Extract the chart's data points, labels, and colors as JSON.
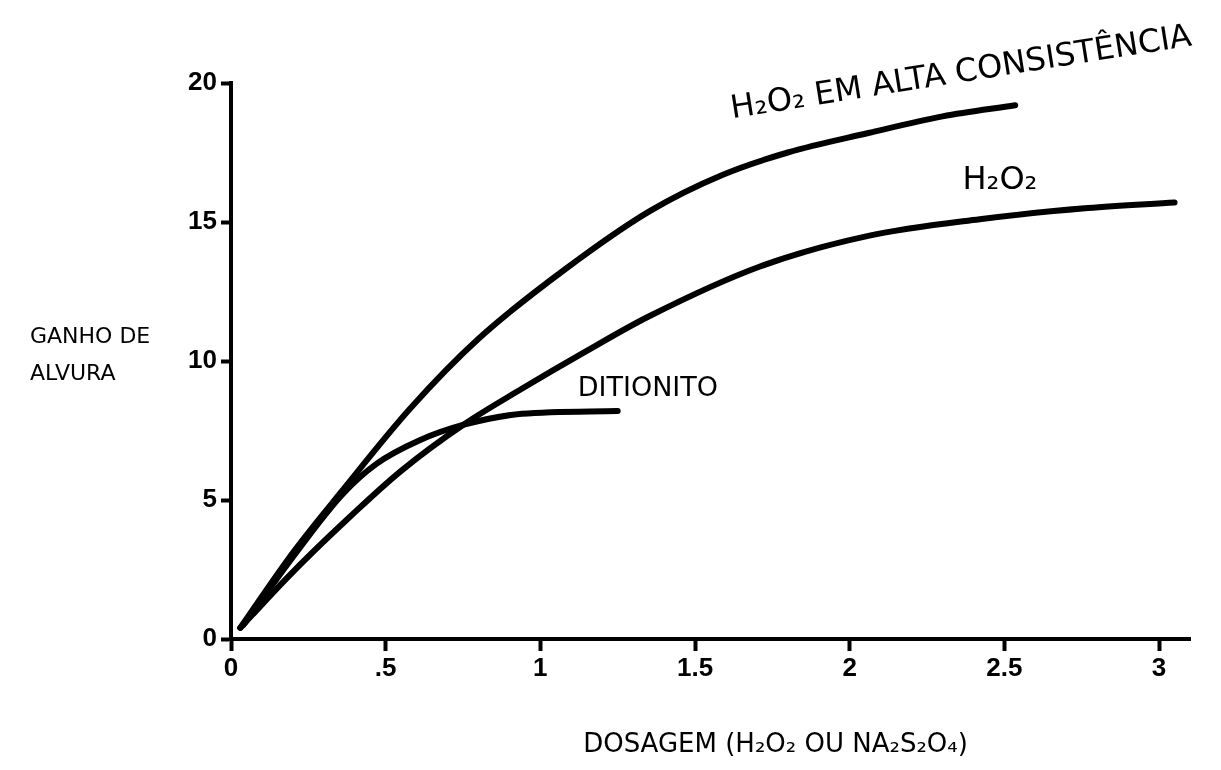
{
  "chart_data": {
    "type": "line",
    "xlabel": "DOSAGEM (H₂O₂ OU NA₂S₂O₄)",
    "ylabel": "GANHO DE ALVURA",
    "xlim": [
      0,
      3.1
    ],
    "ylim": [
      0,
      20
    ],
    "xticks": [
      0,
      {
        "value": 0.5,
        "label": ".5"
      },
      1,
      1.5,
      2,
      2.5,
      3
    ],
    "yticks": [
      0,
      5,
      10,
      15,
      20
    ],
    "grid": false,
    "legend": false,
    "marker": "none",
    "line_style": "solid",
    "series": [
      {
        "name": "H₂O₂ EM ALTA CONSISTÊNCIA",
        "color": "#000000",
        "x": [
          0.03,
          0.2,
          0.357,
          0.58,
          0.8,
          1.08,
          1.355,
          1.59,
          1.8,
          2.06,
          2.3,
          2.535
        ],
        "values": [
          0.4,
          3.1,
          5.3,
          8.3,
          10.8,
          13.3,
          15.4,
          16.7,
          17.5,
          18.2,
          18.8,
          19.2
        ]
      },
      {
        "name": "H₂O₂",
        "color": "#000000",
        "x": [
          0.03,
          0.19,
          0.356,
          0.55,
          0.75,
          0.94,
          1.14,
          1.35,
          1.71,
          2.06,
          2.42,
          2.77,
          3.05
        ],
        "values": [
          0.4,
          2.3,
          4.1,
          6.05,
          7.7,
          9.0,
          10.3,
          11.6,
          13.4,
          14.5,
          15.1,
          15.5,
          15.7
        ]
      },
      {
        "name": "DITIONITO",
        "color": "#000000",
        "x": [
          0.04,
          0.21,
          0.36,
          0.47,
          0.61,
          0.75,
          0.94,
          1.25
        ],
        "values": [
          0.5,
          3.1,
          5.2,
          6.3,
          7.15,
          7.7,
          8.1,
          8.2
        ]
      }
    ]
  }
}
